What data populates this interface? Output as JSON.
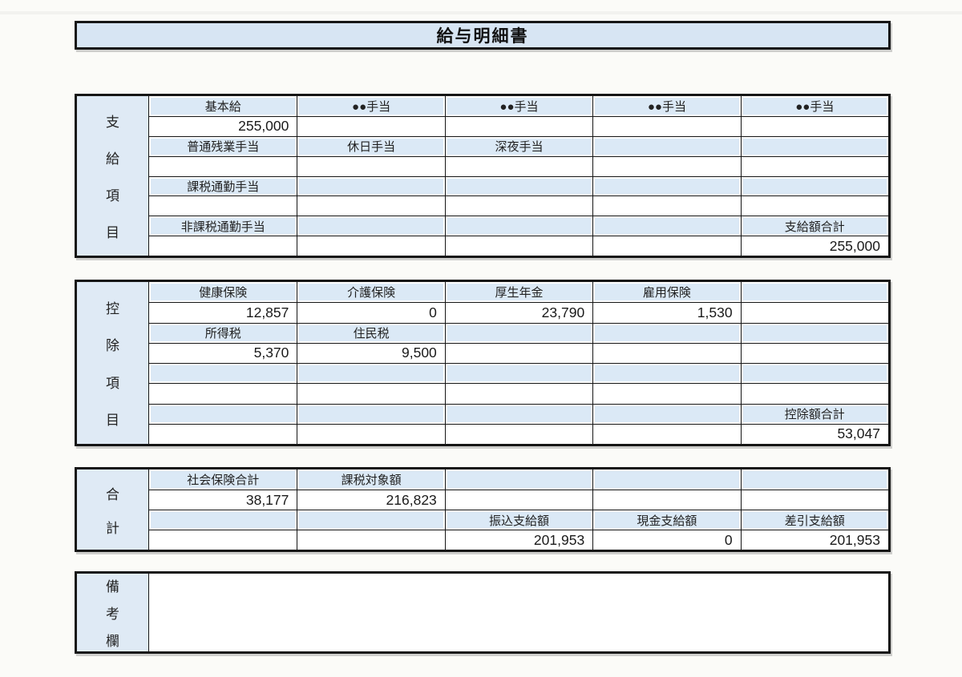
{
  "page": {
    "title": "給与明細書"
  },
  "colors": {
    "title_fill": "#d7e5f3",
    "header_cell_fill": "#dbe9f6",
    "side_label_fill": "#dfeaf5",
    "border": "#161616",
    "page_background": "#fbfbf8"
  },
  "payments": {
    "label_chars": [
      "支",
      "給",
      "項",
      "目"
    ],
    "rows": [
      {
        "type": "header",
        "cells": [
          "基本給",
          "●●手当",
          "●●手当",
          "●●手当",
          "●●手当"
        ]
      },
      {
        "type": "value",
        "cells": [
          "255,000",
          "",
          "",
          "",
          ""
        ]
      },
      {
        "type": "header",
        "cells": [
          "普通残業手当",
          "休日手当",
          "深夜手当",
          "",
          ""
        ]
      },
      {
        "type": "value",
        "cells": [
          "",
          "",
          "",
          "",
          ""
        ]
      },
      {
        "type": "header",
        "cells": [
          "課税通勤手当",
          "",
          "",
          "",
          ""
        ]
      },
      {
        "type": "value",
        "cells": [
          "",
          "",
          "",
          "",
          ""
        ]
      },
      {
        "type": "header",
        "cells": [
          "非課税通勤手当",
          "",
          "",
          "",
          "支給額合計"
        ]
      },
      {
        "type": "value",
        "cells": [
          "",
          "",
          "",
          "",
          "255,000"
        ]
      }
    ]
  },
  "deductions": {
    "label_chars": [
      "控",
      "除",
      "項",
      "目"
    ],
    "rows": [
      {
        "type": "header",
        "cells": [
          "健康保険",
          "介護保険",
          "厚生年金",
          "雇用保険",
          ""
        ]
      },
      {
        "type": "value",
        "cells": [
          "12,857",
          "0",
          "23,790",
          "1,530",
          ""
        ]
      },
      {
        "type": "header",
        "cells": [
          "所得税",
          "住民税",
          "",
          "",
          ""
        ]
      },
      {
        "type": "value",
        "cells": [
          "5,370",
          "9,500",
          "",
          "",
          ""
        ]
      },
      {
        "type": "header",
        "cells": [
          "",
          "",
          "",
          "",
          ""
        ]
      },
      {
        "type": "value",
        "cells": [
          "",
          "",
          "",
          "",
          ""
        ]
      },
      {
        "type": "header",
        "cells": [
          "",
          "",
          "",
          "",
          "控除額合計"
        ]
      },
      {
        "type": "value",
        "cells": [
          "",
          "",
          "",
          "",
          "53,047"
        ]
      }
    ]
  },
  "totals": {
    "label_chars": [
      "合",
      "計"
    ],
    "rows": [
      {
        "type": "header",
        "cells": [
          "社会保険合計",
          "課税対象額",
          "",
          "",
          ""
        ]
      },
      {
        "type": "value",
        "cells": [
          "38,177",
          "216,823",
          "",
          "",
          ""
        ]
      },
      {
        "type": "header",
        "cells": [
          "",
          "",
          "振込支給額",
          "現金支給額",
          "差引支給額"
        ]
      },
      {
        "type": "value",
        "cells": [
          "",
          "",
          "201,953",
          "0",
          "201,953"
        ]
      }
    ]
  },
  "remarks": {
    "label_chars": [
      "備",
      "考",
      "欄"
    ]
  }
}
